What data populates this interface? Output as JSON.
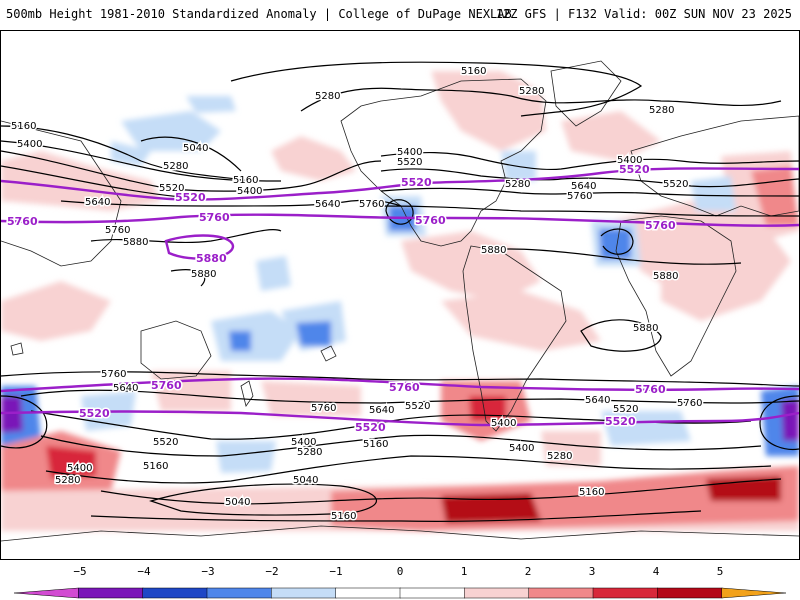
{
  "header": {
    "title_left": "500mb Height 1981-2010 Standardized Anomaly | College of DuPage NEXLAB",
    "title_right": "12Z GFS | F132 Valid: 00Z SUN NOV 23 2025"
  },
  "colors": {
    "neg5": "#d24bd2",
    "neg4": "#7a16b8",
    "neg3": "#1e47c6",
    "neg2": "#4f86ea",
    "neg1": "#c5ddf7",
    "zero": "#ffffff",
    "pos1": "#f8d2d2",
    "pos2": "#f0888a",
    "pos3": "#d8283a",
    "pos4": "#b40818",
    "pos5": "#f2a21a",
    "purple_contour": "#9b1fc9"
  },
  "colorbar": {
    "ticks": [
      "−5",
      "−4",
      "−3",
      "−2",
      "−1",
      "0",
      "1",
      "2",
      "3",
      "4",
      "5"
    ]
  },
  "contour_labels": {
    "l5160_top": "5160",
    "l5280_a": "5280",
    "l5280_b": "5280",
    "l5280_c": "5280",
    "l5160_w": "5160",
    "l5400_w": "5400",
    "l5040_w": "5040",
    "l5280_w": "5280",
    "l5160_w2": "5160",
    "l5520_w": "5520",
    "l5400_w2": "5400",
    "l5640_w": "5640",
    "l5760_w": "5760",
    "l5880_w": "5880",
    "l5880_w2": "5880",
    "l5640_mid": "5640",
    "l5760_mid": "5760",
    "l5400_na": "5400",
    "l5520_na": "5520",
    "l5280_na": "5280",
    "l5880_am": "5880",
    "l5400_eu": "5400",
    "l5640_eu": "5640",
    "l5760_eu": "5760",
    "l5520_eu": "5520",
    "l5880_af": "5880",
    "l5880_af2": "5880",
    "s5760_a": "5760",
    "s5640_a": "5640",
    "s5760_b": "5760",
    "s5640_b": "5640",
    "s5520_b": "5520",
    "s5520_a": "5520",
    "s5400_a": "5400",
    "s5280_a": "5280",
    "s5160_a": "5160",
    "s5400_b": "5400",
    "s5160_b": "5160",
    "s5040_a": "5040",
    "s5040_b": "5040",
    "s5160_c": "5160",
    "s5400_c": "5400",
    "s5280_b": "5280",
    "s5640_c": "5640",
    "s5520_c": "5520",
    "s5760_c": "5760",
    "s5160_d": "5160",
    "s5280_c": "5280",
    "s5400_d": "5400"
  },
  "purple_labels": {
    "p5520_w": "5520",
    "p5760_w": "5760",
    "p5760_w2": "5760",
    "p5880": "5880",
    "p5520_na": "5520",
    "p5760_na": "5760",
    "p5520_eu": "5520",
    "p5760_eu": "5760",
    "p5760_s1": "5760",
    "p5760_s2": "5760",
    "p5760_s3": "5760",
    "p5520_s1": "5520",
    "p5520_s2": "5520",
    "p5520_s3": "5520"
  }
}
